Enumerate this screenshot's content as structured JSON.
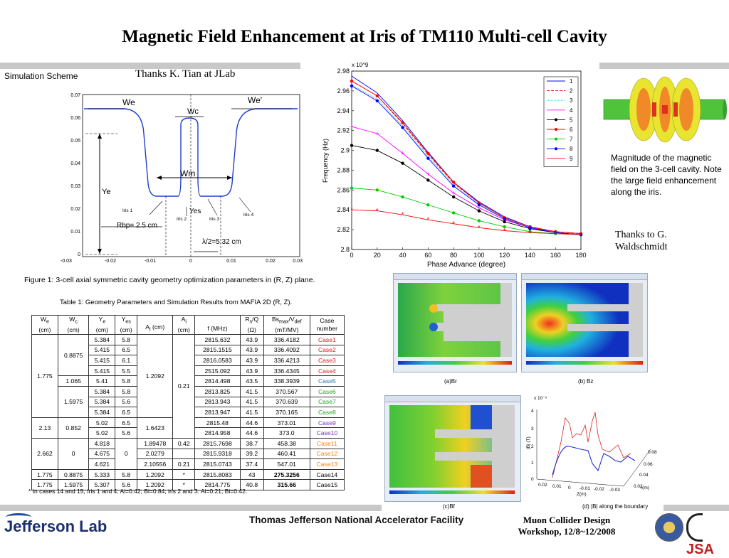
{
  "title": "Magnetic Field Enhancement at Iris of TM110 Multi-cell Cavity",
  "sim_scheme": "Simulation Scheme",
  "thanks_tian": "Thanks K. Tian at JLab",
  "thanks_wald": "Thanks to G. Waldschmidt",
  "field_note": "Magnitude of the magnetic field on the 3-cell cavity.  Note the large field enhancement along the iris.",
  "figure1_caption": "Figure 1: 3-cell axial symmetric cavity geometry optimization parameters in (R, Z) plane.",
  "table_caption": "Table 1:  Geometry Parameters and Simulation Results from MAFIA 2D (R, Z).",
  "footnote": "* In cases 14 and 15, Iris 1 and 4: Ai=0.42; Bi=0.84; iris 2 and 3: Ai=0.21; Bi=0.42.",
  "footer": {
    "lab": "Jefferson Lab",
    "facility": "Thomas Jefferson National Accelerator Facility",
    "workshop_line1": "Muon Collider Design",
    "workshop_line2": "Workshop, 12/8~12/2008",
    "logo_text": "JSA"
  },
  "geometry_figure": {
    "labels": {
      "we_left": "We",
      "we_right": "We'",
      "wc": "Wc",
      "wm": "Wm",
      "ye": "Ye",
      "yes": "Yes",
      "iris1": "Iris 1",
      "iris2": "Iris 2",
      "iris3": "Iris 3",
      "iris4": "Iris 4",
      "rbp": "Rbp= 2.5 cm",
      "half_lambda": "λ/2=5.32 cm"
    },
    "y_ticks": [
      "0.07",
      "0.06",
      "0.05",
      "0.04",
      "0.03",
      "0.02",
      "0.01",
      "0"
    ],
    "x_ticks": [
      "-0.03",
      "-0.02",
      "-0.01",
      "0",
      "0.01",
      "0.02",
      "0.03"
    ]
  },
  "table": {
    "headers": [
      "We (cm)",
      "Wc (cm)",
      "Ye (cm)",
      "Yes (cm)",
      "Ai (cm)",
      "Ai (cm)",
      "f (MHz)",
      "Rs/Q (Ω)",
      "Bsmax/Vdef (mT/MV)",
      "Case number"
    ],
    "rows": [
      [
        "",
        "",
        "5.384",
        "5.8",
        "",
        "",
        "2815.632",
        "43.9",
        "336.4182",
        "Case1"
      ],
      [
        "",
        "",
        "5.415",
        "6.5",
        "",
        "",
        "2815.1515",
        "43.9",
        "336.4092",
        "Case2"
      ],
      [
        "",
        "0.8875",
        "5.415",
        "6.1",
        "",
        "",
        "2816.0583",
        "43.9",
        "336.4213",
        "Case3"
      ],
      [
        "",
        "",
        "5.415",
        "5.5",
        "1.2092",
        "",
        "2515.092",
        "43.9",
        "336.4345",
        "Case4"
      ],
      [
        "1.775",
        "1.065",
        "5.41",
        "5.8",
        "",
        "0.21",
        "2814.498",
        "43.5",
        "338.3939",
        "Case5"
      ],
      [
        "",
        "",
        "5.384",
        "5.8",
        "",
        "",
        "2813.825",
        "41.5",
        "370.567",
        "Case6"
      ],
      [
        "",
        "1.5975",
        "5.384",
        "5.6",
        "",
        "",
        "2813.943",
        "41.5",
        "370.639",
        "Case7"
      ],
      [
        "",
        "",
        "5.384",
        "6.5",
        "",
        "",
        "2813.947",
        "41.5",
        "370.165",
        "Case8"
      ],
      [
        "",
        "0.852",
        "5.02",
        "6.5",
        "",
        "",
        "2815.48",
        "44.6",
        "373.01",
        "Case9"
      ],
      [
        "2.13",
        "",
        "5.02",
        "5.6",
        "1.6423",
        "",
        "2814.958",
        "44.6",
        "373.0",
        "Case10"
      ],
      [
        "",
        "",
        "4.818",
        "",
        "1.89478",
        "0.42",
        "2815.7698",
        "38.7",
        "458.38",
        "Case11"
      ],
      [
        "2.662",
        "0",
        "4.675",
        "0",
        "2.0279",
        "",
        "2815.9318",
        "39.2",
        "460.41",
        "Case12"
      ],
      [
        "",
        "",
        "4.621",
        "",
        "2.10556",
        "0.21",
        "2815.0743",
        "37.4",
        "547.01",
        "Case13"
      ],
      [
        "1.775",
        "0.8875",
        "5.333",
        "5.8",
        "1.2092",
        "*",
        "2815.8083",
        "43",
        "275.3256",
        "Case14"
      ],
      [
        "1.775",
        "1.5975",
        "5.307",
        "5.6",
        "1.2092",
        "*",
        "2814.775",
        "40.8",
        "315.66",
        "Case15"
      ]
    ],
    "case_colors": [
      "#e41a1c",
      "#e41a1c",
      "#e41a1c",
      "#e41a1c",
      "#1f77b4",
      "#2ca02c",
      "#2ca02c",
      "#2ca02c",
      "#7b2fbe",
      "#7b2fbe",
      "#ff7f0e",
      "#ff7f0e",
      "#ff7f0e",
      "#000000",
      "#000000"
    ]
  },
  "panels": {
    "br": "(a)Br",
    "bz": "(b) Bz",
    "bf": "(c)Bf",
    "b_boundary": "(d) |B| along the boundary",
    "boundary_plot": {
      "y_exponent": "x 10⁻³",
      "y_label": "|B| (T)",
      "y_ticks": [
        "4",
        "3",
        "2",
        "1",
        "0"
      ],
      "z_label": "Z(m)",
      "r_label": "r(m)",
      "z_ticks": [
        "0.02",
        "0.01",
        "0",
        "-0.01",
        "-0.02",
        "-0.03"
      ],
      "r_ticks": [
        "0.08",
        "0.06",
        "0.04",
        "0.02"
      ]
    }
  },
  "chart_data": {
    "type": "line",
    "title": "",
    "xlabel": "Phase Advance (degree)",
    "ylabel": "Frequency (Hz)",
    "y_exponent": "x 10^9",
    "xlim": [
      0,
      180
    ],
    "ylim": [
      2.8,
      2.98
    ],
    "x_ticks": [
      0,
      20,
      40,
      60,
      80,
      100,
      120,
      140,
      160,
      180
    ],
    "y_ticks": [
      2.8,
      2.82,
      2.84,
      2.86,
      2.88,
      2.9,
      2.92,
      2.94,
      2.96,
      2.98
    ],
    "grid": false,
    "legend_position": "top-right",
    "x": [
      0,
      20,
      40,
      60,
      80,
      100,
      120,
      140,
      160,
      180
    ],
    "series": [
      {
        "name": "1",
        "color": "#0000ff",
        "marker": "none",
        "values": [
          2.975,
          2.958,
          2.93,
          2.898,
          2.868,
          2.848,
          2.833,
          2.823,
          2.818,
          2.816
        ]
      },
      {
        "name": "2",
        "color": "#ff0000",
        "marker": "none",
        "values": [
          2.97,
          2.955,
          2.927,
          2.896,
          2.867,
          2.847,
          2.832,
          2.823,
          2.818,
          2.816
        ]
      },
      {
        "name": "3",
        "color": "#00cccc",
        "marker": "none",
        "values": [
          2.966,
          2.952,
          2.925,
          2.894,
          2.866,
          2.846,
          2.832,
          2.823,
          2.818,
          2.816
        ]
      },
      {
        "name": "4",
        "color": "#ff00ff",
        "marker": "plus",
        "values": [
          2.924,
          2.917,
          2.897,
          2.876,
          2.857,
          2.842,
          2.83,
          2.822,
          2.818,
          2.816
        ]
      },
      {
        "name": "5",
        "color": "#000000",
        "marker": "dot",
        "values": [
          2.905,
          2.9,
          2.887,
          2.87,
          2.853,
          2.839,
          2.828,
          2.821,
          2.817,
          2.815
        ]
      },
      {
        "name": "6",
        "color": "#ff0000",
        "marker": "dot",
        "values": [
          2.97,
          2.955,
          2.928,
          2.897,
          2.868,
          2.847,
          2.832,
          2.823,
          2.818,
          2.816
        ]
      },
      {
        "name": "7",
        "color": "#00cc00",
        "marker": "dot",
        "values": [
          2.862,
          2.86,
          2.853,
          2.845,
          2.837,
          2.829,
          2.823,
          2.818,
          2.816,
          2.815
        ]
      },
      {
        "name": "8",
        "color": "#0000ff",
        "marker": "dot",
        "values": [
          2.965,
          2.95,
          2.923,
          2.892,
          2.864,
          2.845,
          2.831,
          2.822,
          2.817,
          2.815
        ]
      },
      {
        "name": "9",
        "color": "#ff0000",
        "marker": "star",
        "values": [
          2.84,
          2.839,
          2.835,
          2.83,
          2.826,
          2.822,
          2.819,
          2.817,
          2.816,
          2.815
        ]
      }
    ]
  }
}
